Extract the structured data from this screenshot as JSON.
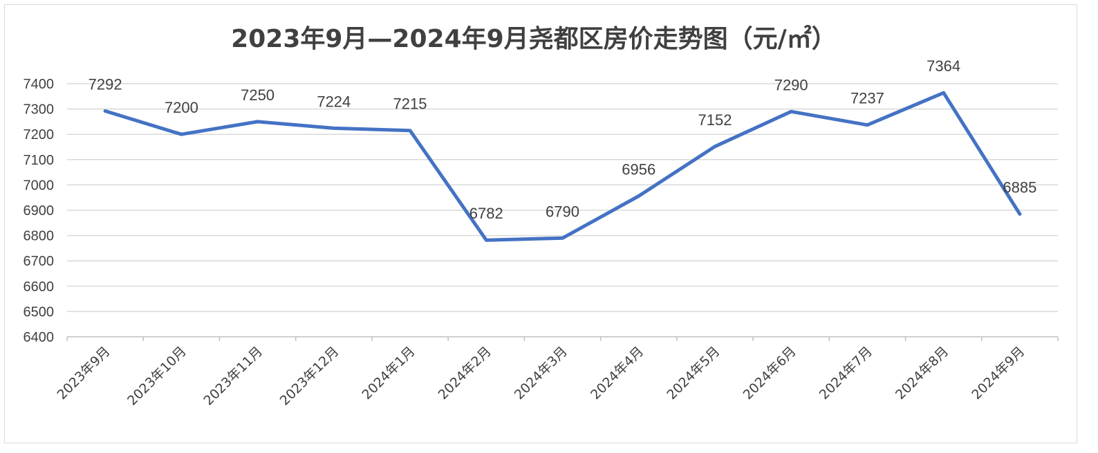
{
  "chart_data": {
    "type": "line",
    "title": "2023年9月—2024年9月尧都区房价走势图（元/㎡）",
    "xlabel": "",
    "ylabel": "",
    "categories": [
      "2023年9月",
      "2023年10月",
      "2023年11月",
      "2023年12月",
      "2024年1月",
      "2024年2月",
      "2024年3月",
      "2024年4月",
      "2024年5月",
      "2024年6月",
      "2024年7月",
      "2024年8月",
      "2024年9月"
    ],
    "series": [
      {
        "values": [
          7292,
          7200,
          7250,
          7224,
          7215,
          6782,
          6790,
          6956,
          7152,
          7290,
          7237,
          7364,
          6885
        ]
      }
    ],
    "ylim": [
      6400,
      7400
    ],
    "yticks": [
      6400,
      6500,
      6600,
      6700,
      6800,
      6900,
      7000,
      7100,
      7200,
      7300,
      7400
    ],
    "grid": true,
    "legend": "none",
    "colors": {
      "line": "#4472c4",
      "grid": "#d9d9d9",
      "text": "#404040",
      "axis": "#bfbfbf"
    }
  }
}
